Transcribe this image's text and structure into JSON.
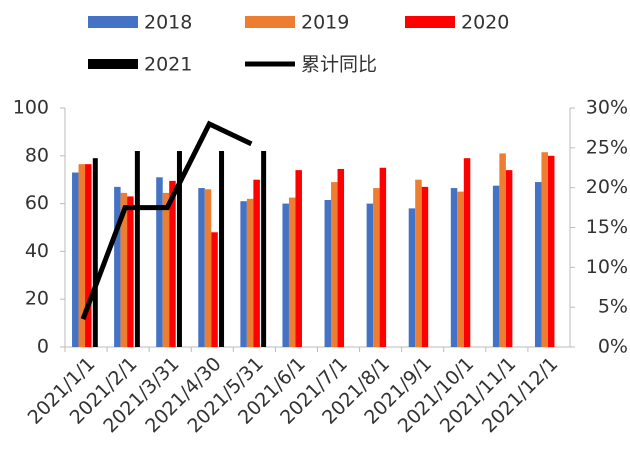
{
  "chart_data": {
    "type": "bar",
    "categories": [
      "2021/1/1",
      "2021/2/1",
      "2021/3/31",
      "2021/4/30",
      "2021/5/31",
      "2021/6/1",
      "2021/7/1",
      "2021/8/1",
      "2021/9/1",
      "2021/10/1",
      "2021/11/1",
      "2021/12/1"
    ],
    "series": [
      {
        "name": "2018",
        "color": "#4472c4",
        "values": [
          73,
          67,
          71,
          66.5,
          61,
          60,
          61.5,
          60,
          58,
          66.5,
          67.5,
          69
        ]
      },
      {
        "name": "2019",
        "color": "#ed7d31",
        "values": [
          76.5,
          64.5,
          64.5,
          66,
          62,
          62.5,
          69,
          66.5,
          70,
          65,
          81,
          81.5
        ]
      },
      {
        "name": "2020",
        "color": "#ff0000",
        "values": [
          76.5,
          63,
          69.5,
          48,
          70,
          74,
          74.5,
          75,
          67,
          79,
          74,
          80
        ]
      },
      {
        "name": "2021",
        "color": "#000000",
        "values": [
          79,
          82,
          82,
          82,
          82,
          null,
          null,
          null,
          null,
          null,
          null,
          null
        ]
      },
      {
        "name": "累计同比",
        "color": "#000000",
        "type": "line",
        "axis": "y2",
        "values": [
          3.5,
          17.5,
          17.5,
          28,
          25.5,
          null,
          null,
          null,
          null,
          null,
          null,
          null
        ]
      }
    ],
    "ylim": [
      0,
      100
    ],
    "yticks": [
      0,
      20,
      40,
      60,
      80,
      100
    ],
    "y2lim": [
      0,
      30
    ],
    "y2ticks": [
      {
        "value": 0,
        "label": "0%"
      },
      {
        "value": 5,
        "label": "5%"
      },
      {
        "value": 10,
        "label": "10%"
      },
      {
        "value": 15,
        "label": "15%"
      },
      {
        "value": 20,
        "label": "20%"
      },
      {
        "value": 25,
        "label": "25%"
      },
      {
        "value": 30,
        "label": "30%"
      }
    ]
  }
}
